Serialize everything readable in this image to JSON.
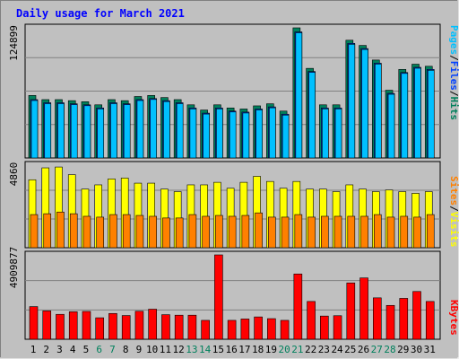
{
  "title": "Daily usage for March 2021",
  "colors": {
    "background": "#c0c0c0",
    "panel": "#c0c0c0",
    "title": "#0000ff",
    "hits": "#00805c",
    "files": "#0040ff",
    "pages": "#00c0ff",
    "visits": "#ffff00",
    "sites": "#ff8000",
    "kbytes": "#ff0000",
    "weekend_label": "#00805c",
    "weekday_label": "#000000"
  },
  "chart_data": [
    {
      "type": "bar",
      "panel": "hits-files-pages",
      "ymax_label": "124899",
      "ylim": [
        0,
        124899
      ],
      "legend": {
        "pages": "Pages",
        "files": "Files",
        "hits": "Hits",
        "sep": "/"
      },
      "categories": [
        "1",
        "2",
        "3",
        "4",
        "5",
        "6",
        "7",
        "8",
        "9",
        "10",
        "11",
        "12",
        "13",
        "14",
        "15",
        "16",
        "17",
        "18",
        "19",
        "20",
        "21",
        "22",
        "23",
        "24",
        "25",
        "26",
        "27",
        "28",
        "29",
        "30",
        "31"
      ],
      "weekend_days": [
        6,
        7,
        13,
        14,
        20,
        21,
        27,
        28
      ],
      "series": [
        {
          "name": "Hits",
          "values": [
            60000,
            56000,
            56000,
            55000,
            54000,
            51000,
            56000,
            55000,
            59000,
            60000,
            58000,
            56000,
            51000,
            46000,
            51000,
            48000,
            47000,
            50000,
            52000,
            45000,
            124899,
            86000,
            51000,
            51000,
            113000,
            108000,
            94000,
            65000,
            85000,
            90000,
            88000
          ]
        },
        {
          "name": "Files",
          "values": [
            56000,
            53000,
            53000,
            52000,
            51000,
            48000,
            53000,
            52000,
            56000,
            57000,
            55000,
            53000,
            48000,
            43000,
            48000,
            45000,
            44000,
            47000,
            49000,
            42000,
            121000,
            83000,
            48000,
            48000,
            110000,
            105000,
            91000,
            62000,
            82000,
            87000,
            85000
          ]
        },
        {
          "name": "Pages",
          "values": [
            56000,
            53000,
            53000,
            52000,
            51000,
            48000,
            53000,
            52000,
            56000,
            57000,
            55000,
            53000,
            48000,
            43000,
            48000,
            45000,
            44000,
            47000,
            49000,
            42000,
            121000,
            83000,
            48000,
            48000,
            110000,
            105000,
            91000,
            62000,
            82000,
            87000,
            85000
          ]
        }
      ]
    },
    {
      "type": "bar",
      "panel": "visits-sites",
      "ymax_label": "4860",
      "ylim": [
        0,
        4860
      ],
      "legend": {
        "sites": "Sites",
        "visits": "Visits",
        "sep": "/"
      },
      "categories": [
        "1",
        "2",
        "3",
        "4",
        "5",
        "6",
        "7",
        "8",
        "9",
        "10",
        "11",
        "12",
        "13",
        "14",
        "15",
        "16",
        "17",
        "18",
        "19",
        "20",
        "21",
        "22",
        "23",
        "24",
        "25",
        "26",
        "27",
        "28",
        "29",
        "30",
        "31"
      ],
      "series": [
        {
          "name": "Visits",
          "values": [
            4000,
            4700,
            4750,
            4300,
            3450,
            3700,
            4050,
            4100,
            3800,
            3800,
            3450,
            3300,
            3700,
            3700,
            3850,
            3500,
            3850,
            4200,
            3900,
            3500,
            3900,
            3450,
            3450,
            3300,
            3700,
            3450,
            3300,
            3400,
            3300,
            3200,
            3300
          ]
        },
        {
          "name": "Sites",
          "values": [
            1950,
            2000,
            2100,
            2000,
            1850,
            1800,
            1950,
            1950,
            1900,
            1850,
            1750,
            1750,
            1950,
            1850,
            1900,
            1850,
            1900,
            2050,
            1800,
            1800,
            1950,
            1800,
            1850,
            1850,
            1850,
            1850,
            1950,
            1800,
            1850,
            1800,
            1950
          ]
        }
      ]
    },
    {
      "type": "bar",
      "panel": "kbytes",
      "ymax_label": "4909877",
      "ylim": [
        0,
        4909877
      ],
      "legend": {
        "kbytes": "KBytes"
      },
      "categories": [
        "1",
        "2",
        "3",
        "4",
        "5",
        "6",
        "7",
        "8",
        "9",
        "10",
        "11",
        "12",
        "13",
        "14",
        "15",
        "16",
        "17",
        "18",
        "19",
        "20",
        "21",
        "22",
        "23",
        "24",
        "25",
        "26",
        "27",
        "28",
        "29",
        "30",
        "31"
      ],
      "series": [
        {
          "name": "KBytes",
          "values": [
            1900000,
            1650000,
            1450000,
            1600000,
            1620000,
            1250000,
            1500000,
            1380000,
            1630000,
            1750000,
            1430000,
            1400000,
            1400000,
            1100000,
            4909877,
            1100000,
            1180000,
            1300000,
            1200000,
            1100000,
            3800000,
            2200000,
            1350000,
            1370000,
            3280000,
            3570000,
            2410000,
            1970000,
            2380000,
            2780000,
            2200000
          ]
        }
      ]
    }
  ]
}
